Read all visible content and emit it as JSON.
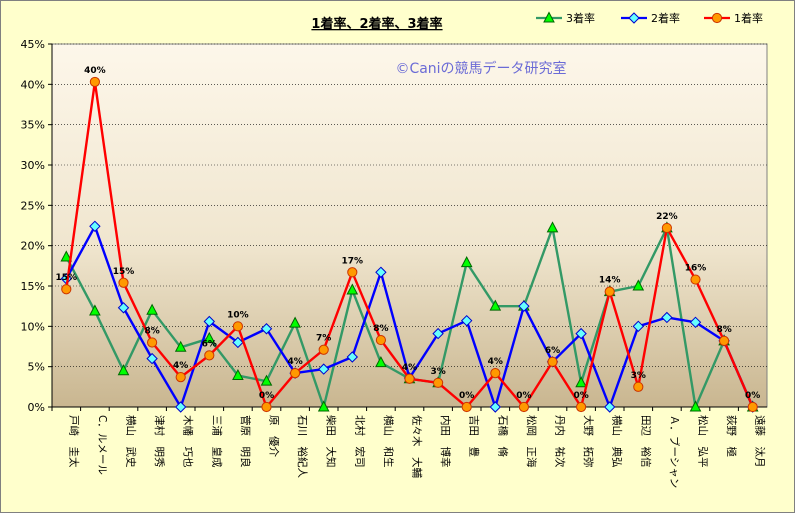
{
  "chart_data": {
    "type": "line",
    "title": "1着率、2着率、3着率",
    "watermark": "©Caniの競馬データ研究室",
    "ylim": [
      0,
      45
    ],
    "yticks": [
      0,
      5,
      10,
      15,
      20,
      25,
      30,
      35,
      40,
      45
    ],
    "ytick_suffix": "%",
    "grid": true,
    "legend_position": "top-right",
    "categories": [
      "戸崎　圭太",
      "C．ルメール",
      "横山　武史",
      "津村　明秀",
      "木幡　巧也",
      "三浦　皇成",
      "菅原　明良",
      "原　優介",
      "石川　裕紀人",
      "柴田　大知",
      "北村　宏司",
      "横山　和生",
      "佐々木　大輔",
      "内田　博幸",
      "吉田　豊",
      "石橋　脩",
      "松岡　正海",
      "丹内　祐次",
      "大野　拓弥",
      "横山　典弘",
      "田辺　裕信",
      "Ａ．ブーシャン",
      "松山　弘平",
      "荻野　極",
      "遠藤　汰月"
    ],
    "series": [
      {
        "name": "3着率",
        "color": "#339966",
        "marker": "triangle",
        "values": [
          18.6,
          11.9,
          4.5,
          12.0,
          7.4,
          8.5,
          3.9,
          3.2,
          10.4,
          0.0,
          14.5,
          5.5,
          3.5,
          3.0,
          17.9,
          12.5,
          12.5,
          22.2,
          3.0,
          14.3,
          15.0,
          22.2,
          0.0,
          8.2,
          0.0
        ]
      },
      {
        "name": "2着率",
        "color": "#0000ff",
        "marker": "diamond",
        "values": [
          15.9,
          22.4,
          12.3,
          6.0,
          0.0,
          10.6,
          8.0,
          9.7,
          4.2,
          4.7,
          6.2,
          16.7,
          3.6,
          9.1,
          10.7,
          0.0,
          12.5,
          5.6,
          9.1,
          0.0,
          10.0,
          11.1,
          10.5,
          8.2,
          0.0
        ]
      },
      {
        "name": "1着率",
        "color": "#ff0000",
        "marker": "circle",
        "values": [
          14.6,
          40.3,
          15.4,
          8.0,
          3.7,
          6.4,
          10.0,
          0.0,
          4.2,
          7.1,
          16.7,
          8.3,
          3.5,
          3.0,
          0.0,
          4.2,
          0.0,
          5.6,
          0.0,
          14.3,
          2.5,
          22.2,
          15.8,
          8.2,
          0.0
        ]
      }
    ],
    "data_labels": [
      "15%",
      "40%",
      "15%",
      "8%",
      "4%",
      "6%",
      "10%",
      "0%",
      "4%",
      "7%",
      "17%",
      "8%",
      "4%",
      "3%",
      "0%",
      "4%",
      "0%",
      "6%",
      "0%",
      "14%",
      "3%",
      "22%",
      "16%",
      "8%",
      "0%"
    ]
  }
}
